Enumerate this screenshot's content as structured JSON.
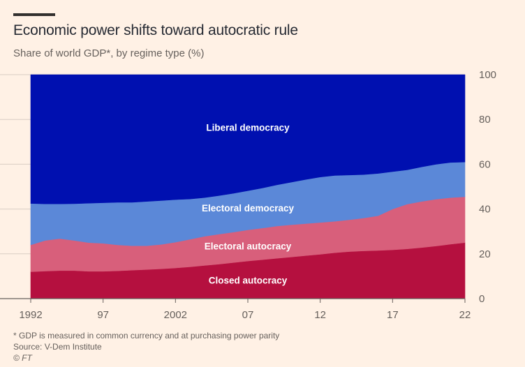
{
  "header": {
    "title": "Economic power shifts toward autocratic rule",
    "subtitle": "Share of world GDP*, by regime type (%)"
  },
  "footer": {
    "note": "* GDP is measured in common currency and at purchasing power parity",
    "source": "Source: V-Dem Institute",
    "copyright": "© FT"
  },
  "colors": {
    "closed_autocracy": "#b5103f",
    "electoral_autocracy": "#d85f7b",
    "electoral_democracy": "#5b88d8",
    "liberal_democracy": "#0010b0",
    "axis": "#66605c",
    "grid": "#d9cdc3"
  },
  "chart_data": {
    "type": "area",
    "stacked": true,
    "x": [
      1992,
      1993,
      1994,
      1995,
      1996,
      1997,
      1998,
      1999,
      2000,
      2001,
      2002,
      2003,
      2004,
      2005,
      2006,
      2007,
      2008,
      2009,
      2010,
      2011,
      2012,
      2013,
      2014,
      2015,
      2016,
      2017,
      2018,
      2019,
      2020,
      2021,
      2022
    ],
    "series": [
      {
        "name": "Closed autocracy",
        "color_key": "closed_autocracy",
        "values": [
          12,
          12.3,
          12.5,
          12.5,
          12.2,
          12.2,
          12.4,
          12.7,
          13,
          13.3,
          13.7,
          14.2,
          14.8,
          15.4,
          16.1,
          16.8,
          17.4,
          18,
          18.6,
          19.2,
          19.8,
          20.5,
          21,
          21.3,
          21.5,
          21.8,
          22.2,
          22.8,
          23.5,
          24.3,
          25
        ]
      },
      {
        "name": "Electoral autocracy",
        "color_key": "electoral_autocracy",
        "values": [
          12,
          13.7,
          14.3,
          13.5,
          12.8,
          12.5,
          11.6,
          10.9,
          10.6,
          10.9,
          11.5,
          12.3,
          13,
          13.4,
          13.6,
          13.9,
          14.1,
          14.4,
          14.4,
          14.3,
          14.2,
          14,
          14.2,
          14.7,
          15.5,
          18.2,
          20,
          20.6,
          20.9,
          20.8,
          20.5
        ]
      },
      {
        "name": "Electoral democracy",
        "color_key": "electoral_democracy",
        "values": [
          18.5,
          16.3,
          15.5,
          16.4,
          17.6,
          18.1,
          19,
          19.4,
          19.8,
          19.6,
          19,
          18,
          17.3,
          17.2,
          17.3,
          17.5,
          17.9,
          18.4,
          19,
          19.7,
          20.3,
          20.5,
          20,
          19.4,
          18.9,
          16.7,
          15.3,
          15.4,
          15.6,
          15.7,
          15.5
        ]
      },
      {
        "name": "Liberal democracy",
        "color_key": "liberal_democracy",
        "values": [
          57.5,
          57.7,
          57.7,
          57.6,
          57.4,
          57.2,
          57,
          57,
          56.6,
          56.2,
          55.8,
          55.5,
          54.9,
          54,
          53,
          51.8,
          50.6,
          49.2,
          48,
          46.8,
          45.7,
          45,
          44.8,
          44.6,
          44.1,
          43.3,
          42.5,
          41.2,
          40,
          39.2,
          39
        ]
      }
    ],
    "series_labels": [
      {
        "text": "Liberal democracy",
        "x": 2007,
        "y": 76
      },
      {
        "text": "Electoral democracy",
        "x": 2007,
        "y": 40
      },
      {
        "text": "Electoral autocracy",
        "x": 2007,
        "y": 23
      },
      {
        "text": "Closed autocracy",
        "x": 2007,
        "y": 7.8
      }
    ],
    "xticks": [
      1992,
      1997,
      2002,
      2007,
      2012,
      2017,
      2022
    ],
    "xtick_labels": [
      "1992",
      "97",
      "2002",
      "07",
      "12",
      "17",
      "22"
    ],
    "yticks": [
      0,
      20,
      40,
      60,
      80,
      100
    ],
    "ytick_labels": [
      "0",
      "20",
      "40",
      "60",
      "80",
      "100"
    ],
    "xlim": [
      1992,
      2022
    ],
    "ylim": [
      0,
      100
    ],
    "grid": true,
    "y_axis_side": "right",
    "title": "Economic power shifts toward autocratic rule",
    "ylabel": "Share of world GDP*, by regime type (%)",
    "xlabel": ""
  }
}
